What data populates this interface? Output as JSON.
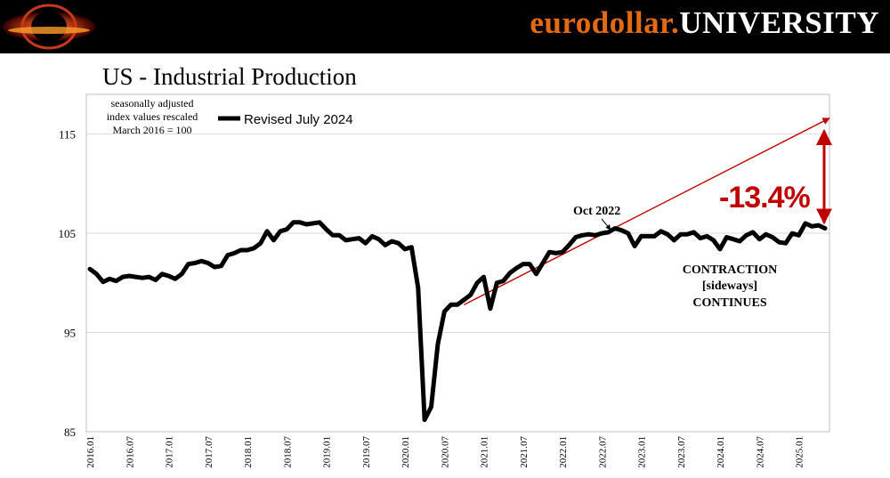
{
  "header": {
    "brand_part1": "eurodollar.",
    "brand_part2": "UNIVERSITY",
    "accent_color": "#e46a12",
    "logo_icon": "eurodollar-logo-icon"
  },
  "chart_data": {
    "type": "line",
    "title": "US - Industrial Production",
    "subtitle_lines": [
      "seasonally adjusted",
      "index values rescaled",
      "March 2016 = 100"
    ],
    "xlabel": "",
    "ylabel": "",
    "ylim": [
      85,
      119
    ],
    "yticks": [
      85,
      95,
      105,
      115
    ],
    "grid": "horizontal",
    "x_tick_labels": [
      "2016.01",
      "2016.07",
      "2017.01",
      "2017.07",
      "2018.01",
      "2018.07",
      "2019.01",
      "2019.07",
      "2020.01",
      "2020.07",
      "2021.01",
      "2021.07",
      "2022.01",
      "2022.07",
      "2023.01",
      "2023.07",
      "2024.01",
      "2024.07",
      "2025.01"
    ],
    "start_period": "2016.01",
    "legend": {
      "label": "Revised July 2024",
      "position": "top-left"
    },
    "series": [
      {
        "name": "Revised July 2024",
        "color": "#000000",
        "values": [
          101.4,
          100.9,
          100.1,
          100.4,
          100.2,
          100.6,
          100.7,
          100.6,
          100.5,
          100.6,
          100.3,
          100.9,
          100.7,
          100.4,
          100.9,
          101.9,
          102.0,
          102.2,
          102.0,
          101.6,
          101.7,
          102.8,
          103.0,
          103.3,
          103.3,
          103.5,
          104.0,
          105.2,
          104.3,
          105.2,
          105.4,
          106.1,
          106.1,
          105.9,
          106.0,
          106.1,
          105.4,
          104.8,
          104.8,
          104.3,
          104.4,
          104.5,
          104.0,
          104.7,
          104.4,
          103.8,
          104.2,
          104.0,
          103.4,
          103.6,
          99.5,
          86.2,
          87.5,
          93.8,
          97.1,
          97.8,
          97.8,
          98.3,
          98.8,
          100.0,
          100.6,
          97.4,
          100.0,
          100.2,
          101.0,
          101.5,
          101.9,
          101.9,
          100.9,
          102.0,
          103.1,
          103.0,
          103.1,
          103.8,
          104.6,
          104.8,
          104.9,
          104.8,
          105.0,
          105.1,
          105.5,
          105.3,
          105.0,
          103.7,
          104.7,
          104.7,
          104.7,
          105.2,
          104.9,
          104.3,
          104.9,
          104.9,
          105.1,
          104.5,
          104.7,
          104.3,
          103.4,
          104.6,
          104.4,
          104.2,
          104.8,
          105.1,
          104.4,
          104.9,
          104.6,
          104.1,
          104.0,
          105.0,
          104.8,
          106.0,
          105.7,
          105.8,
          105.5
        ]
      }
    ],
    "annotations": {
      "peak_label": "Oct 2022",
      "percent_change": "-13.4%",
      "contraction_lines": [
        "CONTRACTION",
        "[sideways]",
        "CONTINUES"
      ],
      "trend_line_color": "#c00000",
      "trend_start_value": 97.8,
      "trend_start_index": 57,
      "trend_end_value": 116.6
    }
  }
}
